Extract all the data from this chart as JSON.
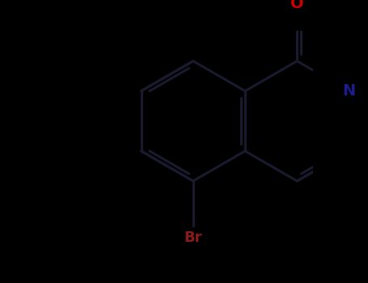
{
  "background_color": "#000000",
  "bond_color": "#1a1a2e",
  "bond_width": 2.2,
  "atom_colors": {
    "Br": "#8B1A1A",
    "N": "#1C1C8C",
    "O": "#CC0000",
    "C": "#1a1a1a"
  },
  "font_sizes": {
    "Br": 13,
    "N": 14,
    "O": 14
  },
  "figsize": [
    4.55,
    3.5
  ],
  "dpi": 100,
  "xlim": [
    -1.0,
    3.5
  ],
  "ylim": [
    -2.2,
    2.0
  ]
}
